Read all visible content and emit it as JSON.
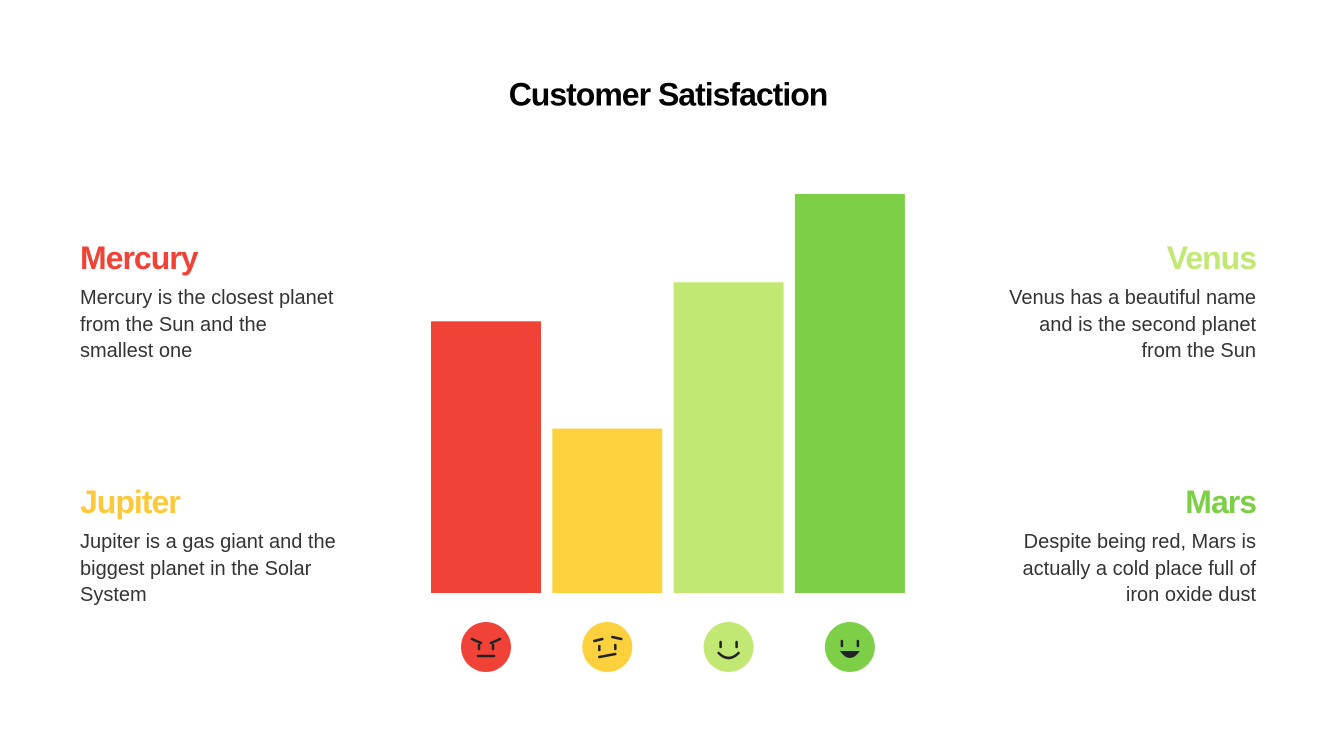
{
  "chart_data": {
    "type": "bar",
    "title": "Customer Satisfaction",
    "values": [
      271,
      164,
      310,
      398
    ],
    "colors": [
      "#f04236",
      "#fdd13d",
      "#c2e874",
      "#7ecf48"
    ],
    "ylim": [
      0,
      400
    ]
  },
  "cards": [
    {
      "title": "Mercury",
      "text": "Mercury is the closest planet from the Sun and the smallest one",
      "color": "#f04236"
    },
    {
      "title": "Jupiter",
      "text": "Jupiter is a gas giant and the biggest planet in the Solar System",
      "color": "#fdc93a"
    },
    {
      "title": "Venus",
      "text": "Venus has a beautiful name and is the second planet from the Sun",
      "color": "#c2e874"
    },
    {
      "title": "Mars",
      "text": "Despite being red, Mars is actually a cold place full of iron oxide dust",
      "color": "#7ecf48"
    }
  ]
}
